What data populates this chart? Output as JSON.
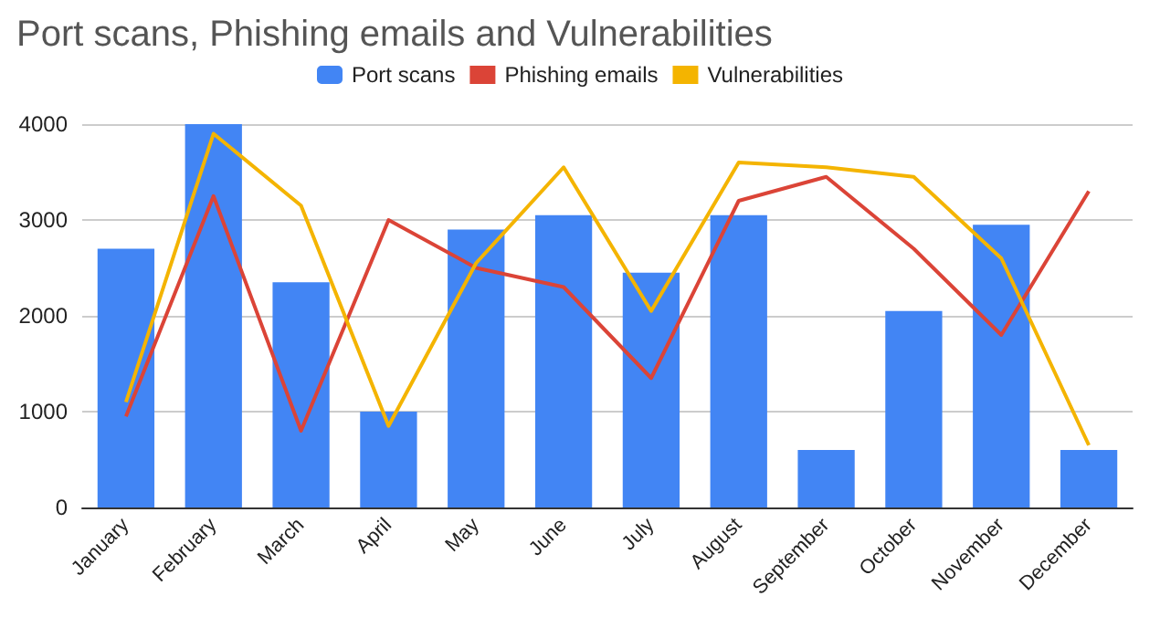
{
  "chart_data": {
    "type": "bar",
    "title": "Port scans, Phishing emails and Vulnerabilities",
    "categories": [
      "January",
      "February",
      "March",
      "April",
      "May",
      "June",
      "July",
      "August",
      "September",
      "October",
      "November",
      "December"
    ],
    "series": [
      {
        "name": "Port scans",
        "color": "#4285f4",
        "values": [
          2700,
          4000,
          2350,
          1000,
          2900,
          3050,
          2450,
          3050,
          600,
          2050,
          2950,
          600
        ]
      },
      {
        "name": "Phishing emails",
        "type": "line",
        "color": "#db4437",
        "values": [
          950,
          3250,
          800,
          3000,
          2500,
          2300,
          1350,
          3200,
          3450,
          2700,
          1800,
          3300
        ]
      },
      {
        "name": "Vulnerabilities",
        "type": "line",
        "color": "#f4b400",
        "values": [
          1100,
          3900,
          3150,
          850,
          2550,
          3550,
          2050,
          3600,
          3550,
          3450,
          2600,
          650
        ]
      }
    ],
    "ylim": [
      0,
      4000
    ],
    "yticks": [
      0,
      1000,
      2000,
      3000,
      4000
    ],
    "grid": "y",
    "legend": "top",
    "marker": "none"
  }
}
